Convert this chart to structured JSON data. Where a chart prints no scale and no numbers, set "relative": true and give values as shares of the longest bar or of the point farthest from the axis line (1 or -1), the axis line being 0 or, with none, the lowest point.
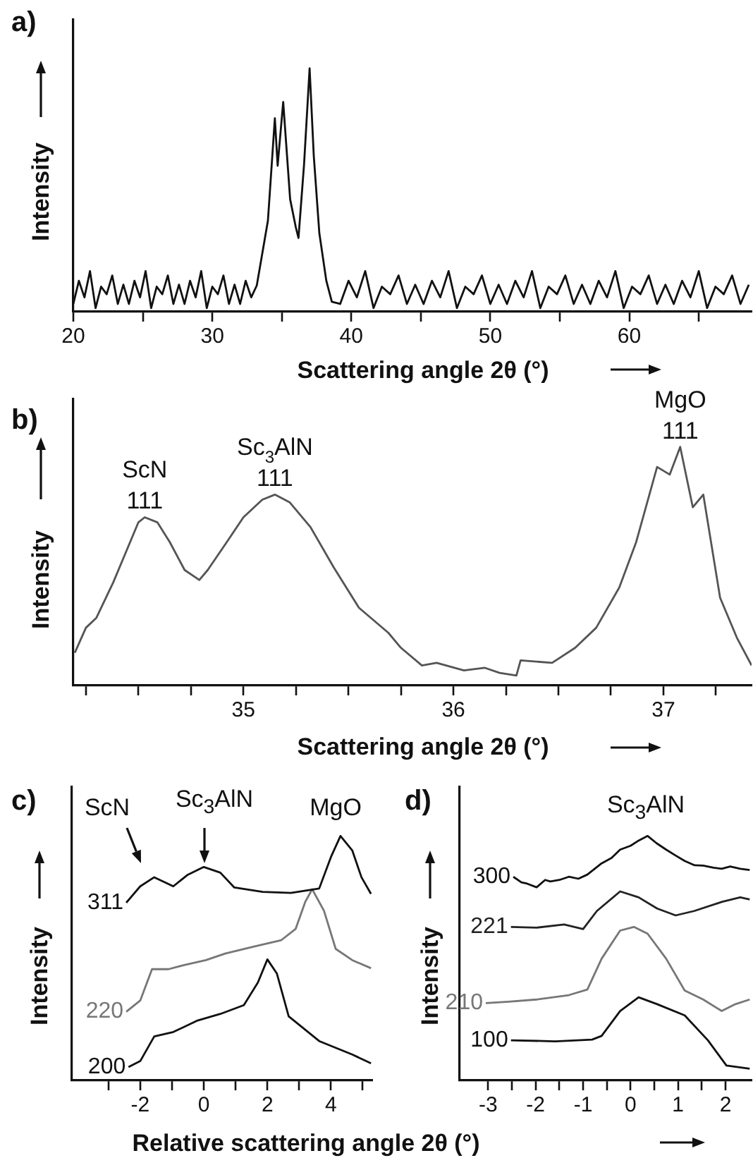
{
  "chart_data": [
    {
      "type": "line",
      "title": "a)",
      "xlabel": "Scattering angle 2θ (°)",
      "ylabel": "Intensity",
      "relative": true,
      "x": [
        20,
        20.4,
        20.8,
        21.2,
        21.6,
        22,
        22.4,
        22.8,
        23.2,
        23.6,
        24,
        24.4,
        24.8,
        25.2,
        25.6,
        26,
        26.4,
        26.8,
        27.2,
        27.6,
        28,
        28.4,
        28.8,
        29.2,
        29.6,
        30,
        30.4,
        30.8,
        31.2,
        31.6,
        32,
        32.4,
        32.8,
        33.2,
        34,
        34.5,
        34.7,
        35.1,
        35.6,
        36,
        36.2,
        36.6,
        37,
        37.3,
        37.7,
        38.2,
        38.6,
        39.2,
        39.8,
        40.4,
        41,
        41.6,
        42.2,
        42.8,
        43.4,
        44,
        44.6,
        45.2,
        45.8,
        46.4,
        47,
        47.6,
        48.2,
        48.8,
        49.4,
        50,
        50.6,
        51.2,
        51.8,
        52.4,
        53,
        53.6,
        54.2,
        54.8,
        55.4,
        56,
        56.6,
        57.2,
        57.8,
        58.4,
        59,
        59.6,
        60.2,
        60.8,
        61.4,
        62,
        62.6,
        63.2,
        63.8,
        64.4,
        65,
        65.6,
        66.2,
        66.8,
        67.4,
        68,
        68.6
      ],
      "series": [
        {
          "color": "#111111",
          "values": [
            0.032,
            0.127,
            0.059,
            0.167,
            0.015,
            0.103,
            0.072,
            0.149,
            0.032,
            0.111,
            0.032,
            0.127,
            0.059,
            0.167,
            0.015,
            0.103,
            0.072,
            0.149,
            0.032,
            0.111,
            0.032,
            0.127,
            0.059,
            0.167,
            0.015,
            0.103,
            0.072,
            0.149,
            0.032,
            0.111,
            0.032,
            0.127,
            0.059,
            0.108,
            0.374,
            0.795,
            0.6,
            0.862,
            0.462,
            0.349,
            0.303,
            0.605,
            1,
            0.641,
            0.323,
            0.128,
            0.041,
            0.032,
            0.127,
            0.059,
            0.167,
            0.015,
            0.103,
            0.072,
            0.149,
            0.032,
            0.111,
            0.032,
            0.127,
            0.059,
            0.167,
            0.015,
            0.103,
            0.072,
            0.149,
            0.032,
            0.111,
            0.032,
            0.127,
            0.059,
            0.167,
            0.015,
            0.103,
            0.072,
            0.149,
            0.032,
            0.111,
            0.032,
            0.127,
            0.059,
            0.167,
            0.015,
            0.103,
            0.072,
            0.149,
            0.032,
            0.111,
            0.032,
            0.127,
            0.059,
            0.167,
            0.015,
            0.103,
            0.072,
            0.149,
            0.032,
            0.111
          ]
        }
      ],
      "xlim": [
        20,
        68.8
      ],
      "xticks": [
        20,
        {
          "value": 25,
          "label": null
        },
        30,
        {
          "value": 35,
          "label": null
        },
        40,
        {
          "value": 45,
          "label": null
        },
        50,
        {
          "value": 55,
          "label": null
        },
        60,
        {
          "value": 65,
          "label": null
        }
      ]
    },
    {
      "type": "line",
      "title": "b)",
      "xlabel": "Scattering angle 2θ (°)",
      "ylabel": "Intensity",
      "relative": true,
      "x": [
        34.197,
        34.25,
        34.3,
        34.38,
        34.44,
        34.5,
        34.53,
        34.59,
        34.65,
        34.72,
        34.79,
        34.83,
        34.92,
        35,
        35.09,
        35.15,
        35.22,
        35.32,
        35.43,
        35.55,
        35.69,
        35.75,
        35.85,
        35.92,
        36.05,
        36.15,
        36.22,
        36.3,
        36.32,
        36.47,
        36.58,
        36.68,
        36.79,
        36.87,
        36.97,
        37.03,
        37.08,
        37.14,
        37.19,
        37.27,
        37.35,
        37.42
      ],
      "series": [
        {
          "color": "#555555",
          "values": [
            0.137,
            0.242,
            0.284,
            0.432,
            0.558,
            0.684,
            0.705,
            0.684,
            0.6,
            0.484,
            0.442,
            0.484,
            0.6,
            0.705,
            0.779,
            0.8,
            0.768,
            0.663,
            0.495,
            0.326,
            0.221,
            0.158,
            0.084,
            0.095,
            0.063,
            0.074,
            0.053,
            0.042,
            0.105,
            0.095,
            0.158,
            0.242,
            0.411,
            0.6,
            0.916,
            0.884,
            1,
            0.747,
            0.8,
            0.368,
            0.2,
            0.084
          ]
        }
      ],
      "annotations": [
        {
          "text": "ScN\n111",
          "x": 34.53,
          "y": 0.705
        },
        {
          "text": "Sc$_{3}$AlN\n111",
          "x": 35.15,
          "y": 0.8
        },
        {
          "text": "MgO\n111",
          "x": 37.08,
          "y": 1
        }
      ],
      "xlim": [
        34.19,
        37.42
      ],
      "xticks": [
        {
          "value": 34.25,
          "label": null
        },
        {
          "value": 34.5,
          "label": null
        },
        {
          "value": 34.75,
          "label": null
        },
        35,
        {
          "value": 35.25,
          "label": null
        },
        {
          "value": 35.5,
          "label": null
        },
        {
          "value": 35.75,
          "label": null
        },
        36,
        {
          "value": 36.25,
          "label": null
        },
        {
          "value": 36.5,
          "label": null
        },
        {
          "value": 36.75,
          "label": null
        },
        37,
        {
          "value": 37.25,
          "label": null
        }
      ]
    },
    {
      "type": "line",
      "title": "c)",
      "xlabel": "Relative scattering angle 2θ (°)",
      "ylabel": "Intensity",
      "relative": true,
      "series": [
        {
          "name": "311",
          "color": "#111111",
          "x": [
            -2.44,
            -2.0,
            -1.56,
            -0.96,
            -0.52,
            0,
            0.52,
            0.96,
            1.85,
            2.74,
            3.63,
            4.0,
            4.3,
            4.67,
            4.96,
            5.26
          ],
          "values": [
            0.727,
            0.794,
            0.831,
            0.794,
            0.84,
            0.873,
            0.85,
            0.789,
            0.771,
            0.767,
            0.785,
            0.914,
            1,
            0.941,
            0.831,
            0.763
          ]
        },
        {
          "name": "220",
          "color": "#777777",
          "x": [
            -2.44,
            -2.0,
            -1.63,
            -1.11,
            -0.59,
            0.07,
            0.67,
            1.56,
            2.44,
            2.89,
            3.19,
            3.41,
            3.78,
            4.15,
            4.67,
            5.26
          ],
          "values": [
            0.281,
            0.327,
            0.455,
            0.455,
            0.473,
            0.492,
            0.519,
            0.547,
            0.574,
            0.62,
            0.73,
            0.782,
            0.694,
            0.538,
            0.492,
            0.459
          ]
        },
        {
          "name": "200",
          "color": "#111111",
          "x": [
            -2.37,
            -2.0,
            -1.56,
            -0.96,
            -0.22,
            0.52,
            1.26,
            1.7,
            2.0,
            2.3,
            2.67,
            3.63,
            4.67,
            5.26
          ],
          "values": [
            0.055,
            0.079,
            0.18,
            0.198,
            0.244,
            0.272,
            0.308,
            0.4,
            0.495,
            0.437,
            0.262,
            0.161,
            0.106,
            0.07
          ]
        }
      ],
      "annotations": [
        "ScN",
        "Sc$_{3}$AlN",
        "MgO"
      ],
      "xlim": [
        -4.15,
        5.3
      ],
      "xticks": [
        {
          "value": -3,
          "label": null
        },
        -2,
        {
          "value": -1,
          "label": null
        },
        0,
        {
          "value": 1,
          "label": null
        },
        2,
        {
          "value": 3,
          "label": null
        },
        4,
        {
          "value": 5,
          "label": null
        }
      ]
    },
    {
      "type": "line",
      "title": "d)",
      "ylabel": "Intensity",
      "relative": true,
      "series": [
        {
          "name": "300",
          "color": "#111111",
          "x": [
            -2.47,
            -2.3,
            -2.18,
            -1.98,
            -1.8,
            -1.69,
            -1.5,
            -1.3,
            -1.1,
            -0.91,
            -0.61,
            -0.4,
            -0.22,
            0,
            0.17,
            0.36,
            0.55,
            0.75,
            0.95,
            1.14,
            1.35,
            1.53,
            1.75,
            1.92,
            2.1,
            2.31,
            2.51
          ],
          "values": [
            0.833,
            0.81,
            0.805,
            0.79,
            0.82,
            0.814,
            0.82,
            0.833,
            0.825,
            0.842,
            0.888,
            0.91,
            0.944,
            0.96,
            0.981,
            1,
            0.97,
            0.944,
            0.92,
            0.898,
            0.88,
            0.879,
            0.87,
            0.866,
            0.875,
            0.866,
            0.861
          ]
        },
        {
          "name": "221",
          "color": "#222222",
          "x": [
            -2.52,
            -1.98,
            -1.4,
            -1.0,
            -0.71,
            -0.22,
            0.17,
            0.56,
            0.95,
            1.34,
            1.92,
            2.31,
            2.51
          ],
          "values": [
            0.628,
            0.625,
            0.638,
            0.619,
            0.693,
            0.773,
            0.749,
            0.703,
            0.675,
            0.693,
            0.73,
            0.749,
            0.74
          ]
        },
        {
          "name": "210",
          "color": "#777777",
          "x": [
            -3.05,
            -2.57,
            -1.98,
            -1.3,
            -0.91,
            -0.61,
            -0.22,
            0.07,
            0.36,
            0.75,
            1.14,
            1.53,
            1.92,
            2.21,
            2.51
          ],
          "values": [
            0.316,
            0.322,
            0.331,
            0.349,
            0.372,
            0.498,
            0.613,
            0.628,
            0.6,
            0.498,
            0.368,
            0.331,
            0.284,
            0.312,
            0.331
          ]
        },
        {
          "name": "100",
          "color": "#111111",
          "x": [
            -2.52,
            -1.59,
            -0.81,
            -0.61,
            -0.22,
            0.17,
            0.56,
            1.14,
            1.63,
            2.02,
            2.51
          ],
          "values": [
            0.164,
            0.16,
            0.167,
            0.182,
            0.284,
            0.34,
            0.312,
            0.266,
            0.164,
            0.061,
            0.048
          ]
        }
      ],
      "annotations": [
        "Sc$_{3}$AlN"
      ],
      "xlim": [
        -3.6,
        2.55
      ],
      "xticks": [
        -3,
        {
          "value": -2.5,
          "label": null
        },
        -2,
        {
          "value": -1.5,
          "label": null
        },
        -1,
        {
          "value": -0.5,
          "label": null
        },
        0,
        {
          "value": 0.5,
          "label": null
        },
        1,
        {
          "value": 1.5,
          "label": null
        },
        2
      ]
    }
  ]
}
